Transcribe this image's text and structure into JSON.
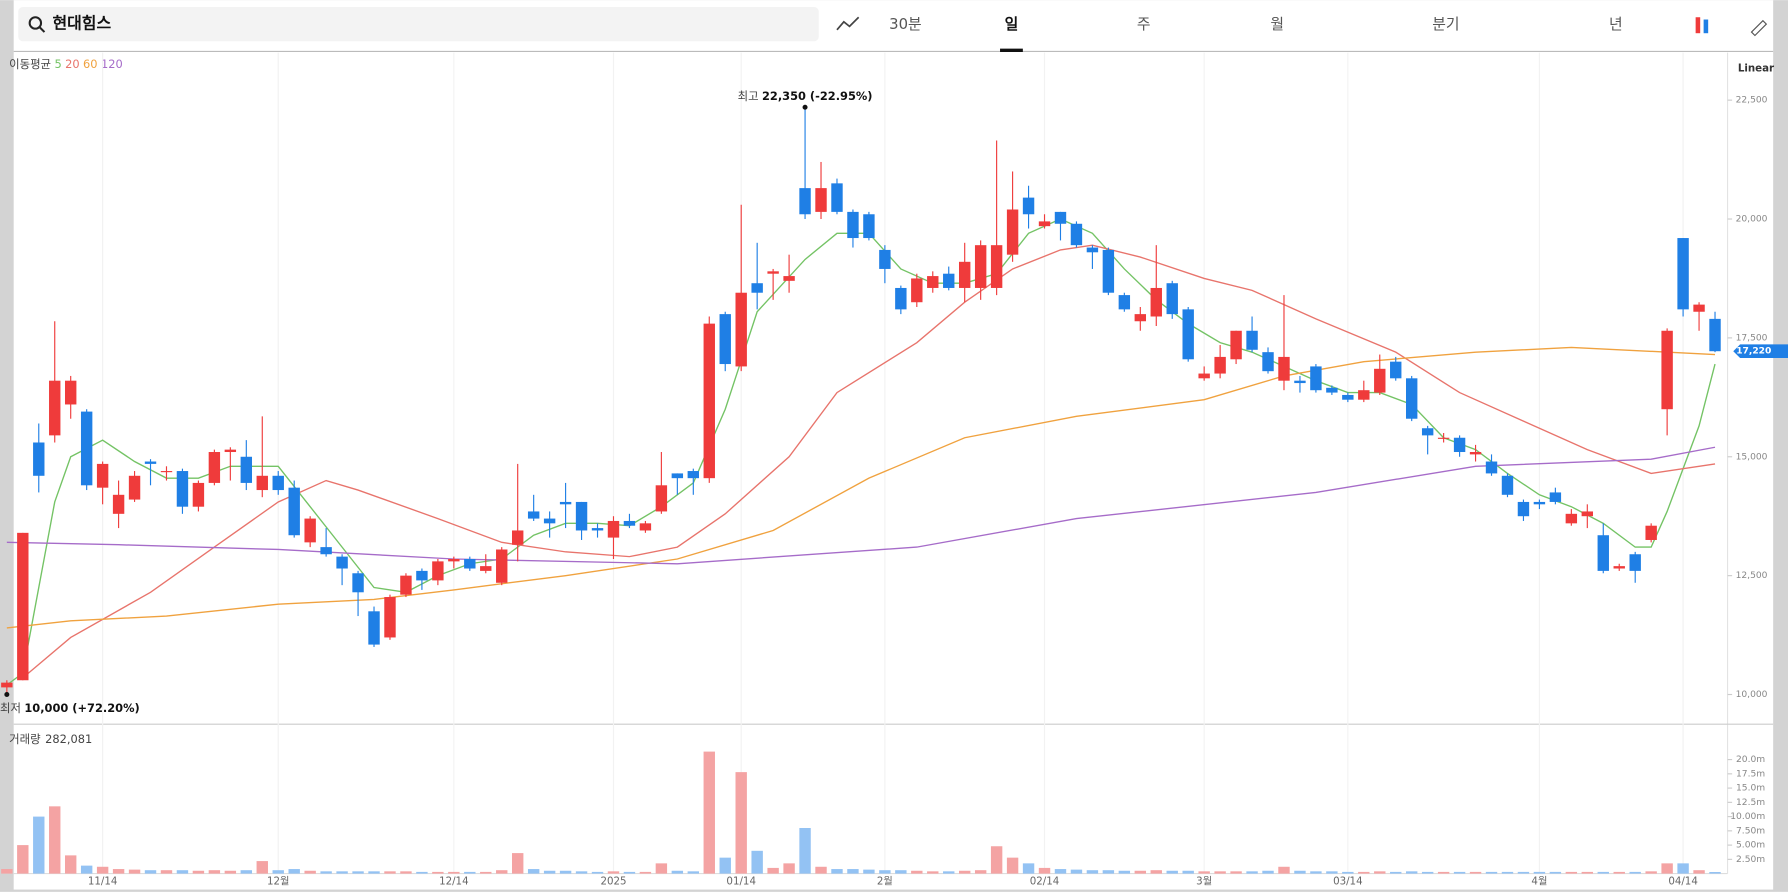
{
  "search": "현대힘스",
  "tabs": [
    "30분",
    "일",
    "주",
    "월",
    "분기",
    "년"
  ],
  "scale_mode": "Linear",
  "chart_data": {
    "type": "candlestick",
    "legend_title": "이동평균",
    "volume_title": "거래량",
    "volume_text": "282,081",
    "categories": [
      null,
      null,
      null,
      null,
      null,
      null,
      "11/14",
      null,
      null,
      null,
      null,
      null,
      null,
      null,
      null,
      null,
      null,
      "12월",
      null,
      null,
      null,
      null,
      null,
      null,
      null,
      null,
      null,
      null,
      "12/14",
      null,
      null,
      null,
      null,
      null,
      null,
      null,
      null,
      null,
      "2025",
      null,
      null,
      null,
      null,
      null,
      null,
      null,
      "01/14",
      null,
      null,
      null,
      null,
      null,
      null,
      null,
      null,
      "2월",
      null,
      null,
      null,
      null,
      null,
      null,
      null,
      null,
      null,
      "02/14",
      null,
      null,
      null,
      null,
      null,
      null,
      null,
      null,
      null,
      "3월",
      null,
      null,
      null,
      null,
      null,
      null,
      null,
      null,
      "03/14",
      null,
      null,
      null,
      null,
      null,
      null,
      null,
      null,
      null,
      null,
      null,
      "4월",
      null,
      null,
      null,
      null,
      null,
      null,
      null,
      null,
      "04/14",
      null,
      null
    ],
    "open": [
      10150,
      10300,
      15300,
      15450,
      16100,
      15950,
      14350,
      13800,
      14100,
      14900,
      14700,
      14700,
      13950,
      14450,
      15100,
      15000,
      14300,
      14600,
      14350,
      13200,
      13100,
      12900,
      12550,
      11750,
      11200,
      12100,
      12600,
      12400,
      12800,
      12850,
      12600,
      12350,
      13150,
      13850,
      13700,
      14050,
      14050,
      13500,
      13300,
      13650,
      13450,
      13850,
      14650,
      14700,
      14550,
      18000,
      16900,
      18650,
      18850,
      18700,
      20650,
      20150,
      20750,
      20150,
      20100,
      19350,
      18550,
      18250,
      18550,
      18850,
      18550,
      18550,
      18550,
      19250,
      20450,
      19850,
      20150,
      19900,
      19400,
      19350,
      18400,
      17850,
      17950,
      18650,
      18100,
      16650,
      16750,
      17050,
      17650,
      17200,
      16600,
      16600,
      16900,
      16450,
      16300,
      16200,
      16350,
      17000,
      16650,
      15600,
      15400,
      15400,
      15050,
      14900,
      14600,
      14050,
      14050,
      14250,
      13600,
      13750,
      13350,
      12650,
      12950,
      13250,
      16000,
      19600,
      18050,
      17900
    ],
    "close": [
      10250,
      13400,
      14600,
      16600,
      16600,
      14400,
      14850,
      14200,
      14600,
      14850,
      14700,
      13950,
      14450,
      15100,
      15150,
      14450,
      14600,
      14300,
      13350,
      13700,
      12950,
      12650,
      12150,
      11050,
      12050,
      12500,
      12400,
      12800,
      12850,
      12650,
      12700,
      13050,
      13450,
      13700,
      13600,
      14000,
      13450,
      13450,
      13650,
      13550,
      13600,
      14400,
      14550,
      14550,
      17800,
      16950,
      18450,
      18450,
      18900,
      18800,
      20100,
      20650,
      20150,
      19600,
      19600,
      18950,
      18100,
      18750,
      18800,
      18550,
      19100,
      19450,
      19450,
      20200,
      20100,
      19950,
      19900,
      19450,
      19300,
      18450,
      18100,
      18000,
      18550,
      18000,
      17050,
      16750,
      17100,
      17650,
      17250,
      16800,
      17100,
      16550,
      16400,
      16350,
      16200,
      16400,
      16850,
      16650,
      15800,
      15450,
      15400,
      15100,
      15100,
      14650,
      14200,
      13750,
      14000,
      14050,
      13800,
      13850,
      12600,
      12700,
      12600,
      13550,
      17650,
      18100,
      18200,
      17220
    ],
    "high": [
      10300,
      13400,
      15700,
      17850,
      16700,
      16000,
      14900,
      14500,
      14700,
      14950,
      14800,
      14750,
      14500,
      15150,
      15200,
      15350,
      15850,
      14700,
      14500,
      13750,
      13500,
      12950,
      12600,
      11850,
      12100,
      12550,
      12650,
      12850,
      12900,
      12900,
      12950,
      13100,
      14850,
      14200,
      13850,
      14450,
      14050,
      13600,
      13750,
      13800,
      13650,
      15100,
      14650,
      14750,
      17950,
      18050,
      20300,
      19500,
      18950,
      19250,
      22350,
      21200,
      20850,
      20200,
      20150,
      19450,
      18600,
      18850,
      18900,
      19000,
      19500,
      19550,
      21650,
      21000,
      20700,
      20100,
      20150,
      19950,
      19450,
      19400,
      18450,
      18150,
      19450,
      18700,
      18150,
      16900,
      17350,
      17650,
      17950,
      17300,
      18400,
      16700,
      16950,
      16500,
      16350,
      16600,
      17150,
      17100,
      16700,
      15650,
      15500,
      15450,
      15250,
      15050,
      14650,
      14100,
      14100,
      14350,
      13900,
      14000,
      13600,
      12750,
      13000,
      13600,
      17700,
      19600,
      18250,
      18050
    ],
    "low": [
      10000,
      10300,
      14250,
      15300,
      15800,
      14300,
      14000,
      13500,
      14050,
      14400,
      14500,
      13800,
      13850,
      14400,
      14500,
      14300,
      14150,
      14200,
      13300,
      13100,
      12900,
      12300,
      11650,
      11000,
      11150,
      12050,
      12200,
      12300,
      12650,
      12600,
      12550,
      12300,
      12800,
      13650,
      13300,
      13500,
      13250,
      13300,
      12850,
      13500,
      13400,
      13800,
      14200,
      14200,
      14450,
      16800,
      16800,
      18100,
      18300,
      18450,
      20000,
      20000,
      20100,
      19400,
      19550,
      18650,
      18000,
      18150,
      18450,
      18500,
      18250,
      18300,
      18400,
      19100,
      19800,
      19800,
      19550,
      19400,
      18950,
      18400,
      18050,
      17650,
      17750,
      17900,
      17000,
      16600,
      16650,
      16950,
      17200,
      16750,
      16400,
      16350,
      16350,
      16300,
      16150,
      16150,
      16300,
      16600,
      15750,
      15050,
      15300,
      15000,
      14900,
      14600,
      14150,
      13650,
      13900,
      14000,
      13550,
      13500,
      12550,
      12600,
      12350,
      13200,
      15450,
      17950,
      17650,
      17200
    ],
    "volume": [
      0.8,
      5.0,
      10.0,
      11.8,
      3.2,
      1.4,
      1.2,
      0.8,
      0.7,
      0.6,
      0.6,
      0.6,
      0.5,
      0.6,
      0.5,
      0.6,
      2.2,
      0.6,
      0.8,
      0.5,
      0.4,
      0.4,
      0.4,
      0.4,
      0.4,
      0.4,
      0.3,
      0.3,
      0.3,
      0.3,
      0.3,
      0.6,
      3.6,
      0.8,
      0.5,
      0.5,
      0.4,
      0.3,
      0.4,
      0.3,
      0.3,
      1.8,
      0.5,
      0.4,
      21.4,
      2.8,
      17.8,
      4.0,
      1.0,
      1.8,
      8.0,
      1.2,
      0.8,
      0.8,
      0.7,
      0.6,
      0.6,
      0.5,
      0.4,
      0.4,
      0.5,
      0.6,
      4.8,
      2.8,
      1.8,
      1.0,
      0.8,
      0.7,
      0.6,
      0.6,
      0.5,
      0.5,
      0.6,
      0.5,
      0.5,
      0.4,
      0.4,
      0.4,
      0.4,
      0.5,
      1.2,
      0.5,
      0.4,
      0.4,
      0.3,
      0.3,
      0.4,
      0.3,
      0.4,
      0.3,
      0.3,
      0.3,
      0.3,
      0.3,
      0.3,
      0.3,
      0.3,
      0.3,
      0.3,
      0.3,
      0.3,
      0.3,
      0.3,
      0.4,
      1.8,
      1.8,
      0.6,
      0.282081
    ],
    "up_color": "#ef3b3b",
    "down_color": "#1f7fe5",
    "up_volume_color": "#f4a3a3",
    "down_volume_color": "#93c2f3",
    "moving_averages": [
      {
        "name": "5",
        "color": "#74c365",
        "x": [
          0,
          1,
          3,
          4,
          6,
          8,
          10,
          12,
          14,
          17,
          19,
          21,
          23,
          25,
          27,
          29,
          31,
          33,
          35,
          37,
          39,
          41,
          43,
          45,
          47,
          50,
          52,
          54,
          56,
          58,
          60,
          62,
          64,
          66,
          68,
          70,
          72,
          74,
          76,
          78,
          80,
          82,
          84,
          86,
          88,
          90,
          92,
          94,
          96,
          98,
          100,
          102,
          103,
          104,
          106,
          107
        ],
        "values": [
          10200,
          10450,
          14050,
          15000,
          15350,
          14900,
          14550,
          14550,
          14800,
          14800,
          13950,
          13100,
          12250,
          12150,
          12500,
          12750,
          12850,
          13350,
          13600,
          13600,
          13550,
          13950,
          14450,
          16000,
          18050,
          19150,
          19700,
          19700,
          18950,
          18650,
          18650,
          18850,
          19700,
          20000,
          19700,
          18950,
          18300,
          17800,
          17400,
          17200,
          16900,
          16600,
          16350,
          16350,
          16100,
          15400,
          15150,
          14650,
          14200,
          13950,
          13600,
          13100,
          13100,
          13850,
          15650,
          16950
        ]
      },
      {
        "name": "20",
        "color": "#e8746c",
        "x": [
          1,
          4,
          9,
          13,
          17,
          20,
          22,
          27,
          31,
          35,
          39,
          42,
          45,
          49,
          52,
          57,
          60,
          63,
          66,
          68,
          71,
          75,
          78,
          82,
          87,
          91,
          95,
          99,
          103,
          107
        ],
        "values": [
          10350,
          11200,
          12150,
          13100,
          14050,
          14500,
          14300,
          13700,
          13200,
          13000,
          12900,
          13100,
          13800,
          15000,
          16350,
          17400,
          18250,
          18950,
          19350,
          19450,
          19200,
          18750,
          18500,
          17900,
          17200,
          16350,
          15750,
          15150,
          14650,
          14850
        ]
      },
      {
        "name": "60",
        "color": "#f0a23f",
        "x": [
          0,
          4,
          10,
          17,
          23,
          28,
          35,
          42,
          48,
          54,
          60,
          67,
          75,
          80,
          85,
          92,
          98,
          107
        ],
        "values": [
          11400,
          11550,
          11650,
          11900,
          12000,
          12200,
          12500,
          12850,
          13450,
          14550,
          15400,
          15850,
          16200,
          16700,
          17000,
          17200,
          17300,
          17150
        ]
      },
      {
        "name": "120",
        "color": "#a66cc9",
        "x": [
          0,
          7,
          17,
          28,
          42,
          57,
          67,
          82,
          92,
          103,
          107
        ],
        "values": [
          13200,
          13150,
          13050,
          12850,
          12750,
          13100,
          13700,
          14250,
          14800,
          14950,
          15200
        ]
      }
    ],
    "ylim": [
      9375,
      23500
    ],
    "yticks": [
      {
        "value": 10000,
        "label": "10,000"
      },
      {
        "value": 12500,
        "label": "12,500"
      },
      {
        "value": 15000,
        "label": "15,000"
      },
      {
        "value": 17500,
        "label": "17,500"
      },
      {
        "value": 20000,
        "label": "20,000"
      },
      {
        "value": 22500,
        "label": "22,500"
      }
    ],
    "volume_ylim": [
      0,
      25.2
    ],
    "volume_ticks": [
      {
        "value": 2.5,
        "label": "2.50m"
      },
      {
        "value": 5,
        "label": "5.00m"
      },
      {
        "value": 7.5,
        "label": "7.50m"
      },
      {
        "value": 10,
        "label": "10.00m"
      },
      {
        "value": 12.5,
        "label": "12.5m"
      },
      {
        "value": 15,
        "label": "15.0m"
      },
      {
        "value": 17.5,
        "label": "17.5m"
      },
      {
        "value": 20,
        "label": "20.0m"
      }
    ],
    "last_price": {
      "value": 17220,
      "label": "17,220"
    },
    "max_annotation": {
      "label": "최고",
      "value": 22350,
      "text": "22,350 (-22.95%)"
    },
    "min_annotation": {
      "label": "최저",
      "value": 10000,
      "text": "10,000 (+72.20%)"
    },
    "grid": false
  }
}
